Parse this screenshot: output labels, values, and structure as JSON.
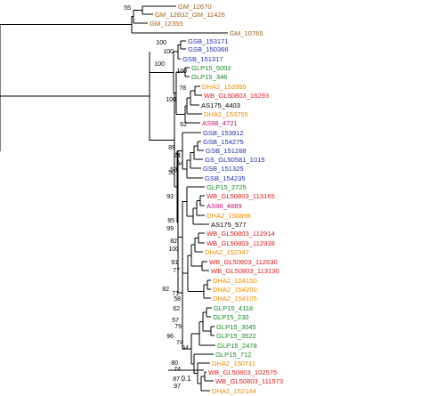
{
  "colors": {
    "GM": "#a0621e",
    "GSB": "#2233aa",
    "GLP": "#1a8a2a",
    "DHA": "#ee8c00",
    "WB": "#dd1c1c",
    "AS": "#c0147a",
    "black": "#000000"
  },
  "scale_bar": {
    "label": "0.1"
  },
  "leaves": [
    {
      "label": "GM_12670",
      "color": "GM"
    },
    {
      "label": "GM_12832_GM_11426",
      "color": "GM"
    },
    {
      "label": "GM_12355",
      "color": "GM"
    },
    {
      "label": "GM_10765",
      "color": "GM"
    },
    {
      "label": "GSB_153171",
      "color": "GSB"
    },
    {
      "label": "GSB_150366",
      "color": "GSB"
    },
    {
      "label": "GSB_151317",
      "color": "GSB"
    },
    {
      "label": "GLP15_5002",
      "color": "GLP"
    },
    {
      "label": "GLP15_346",
      "color": "GLP"
    },
    {
      "label": "DHA2_153995",
      "color": "DHA"
    },
    {
      "label": "WB_GL50803_16293",
      "color": "WB"
    },
    {
      "label": "AS175_4403",
      "color": "black"
    },
    {
      "label": "DHA2_153755",
      "color": "DHA"
    },
    {
      "label": "AS98_4721",
      "color": "AS"
    },
    {
      "label": "GSB_153912",
      "color": "GSB"
    },
    {
      "label": "GSB_154275",
      "color": "GSB"
    },
    {
      "label": "GSB_151288",
      "color": "GSB"
    },
    {
      "label": "GS_GL50581_1015",
      "color": "GSB"
    },
    {
      "label": "GSB_151325",
      "color": "GSB"
    },
    {
      "label": "GSB_154235",
      "color": "GSB"
    },
    {
      "label": "GLP15_2725",
      "color": "GLP"
    },
    {
      "label": "WB_GL50803_113165",
      "color": "WB"
    },
    {
      "label": "AS98_4889",
      "color": "AS"
    },
    {
      "label": "DHA2_150898",
      "color": "DHA"
    },
    {
      "label": "AS175_577",
      "color": "black"
    },
    {
      "label": "WB_GL50803_112914",
      "color": "WB"
    },
    {
      "label": "WB_GL50803_112938",
      "color": "WB"
    },
    {
      "label": "DHA2_152347",
      "color": "DHA"
    },
    {
      "label": "WB_GL50803_112630",
      "color": "WB"
    },
    {
      "label": "WB_GL50803_113130",
      "color": "WB"
    },
    {
      "label": "DHA2_154150",
      "color": "DHA"
    },
    {
      "label": "DHA2_154200",
      "color": "DHA"
    },
    {
      "label": "DHA2_154105",
      "color": "DHA"
    },
    {
      "label": "GLP15_4118",
      "color": "GLP"
    },
    {
      "label": "GLP15_230",
      "color": "GLP"
    },
    {
      "label": "GLP15_3045",
      "color": "GLP"
    },
    {
      "label": "GLP15_3522",
      "color": "GLP"
    },
    {
      "label": "GLP15_2478",
      "color": "GLP"
    },
    {
      "label": "GLP15_712",
      "color": "GLP"
    },
    {
      "label": "DHA2_150711",
      "color": "DHA"
    },
    {
      "label": "WB_GL50803_102575",
      "color": "WB"
    },
    {
      "label": "WB_GL50803_111973",
      "color": "WB"
    },
    {
      "label": "DHA2_152144",
      "color": "DHA"
    }
  ],
  "bootstraps": [
    "55",
    "100",
    "100",
    "100",
    "100",
    "78",
    "62",
    "100",
    "89",
    "74",
    "94",
    "58",
    "50",
    "93",
    "85",
    "99",
    "82",
    "100",
    "91",
    "77",
    "82",
    "71",
    "58",
    "62",
    "57",
    "79",
    "96",
    "74",
    "54",
    "80",
    "74",
    "87",
    "97"
  ]
}
